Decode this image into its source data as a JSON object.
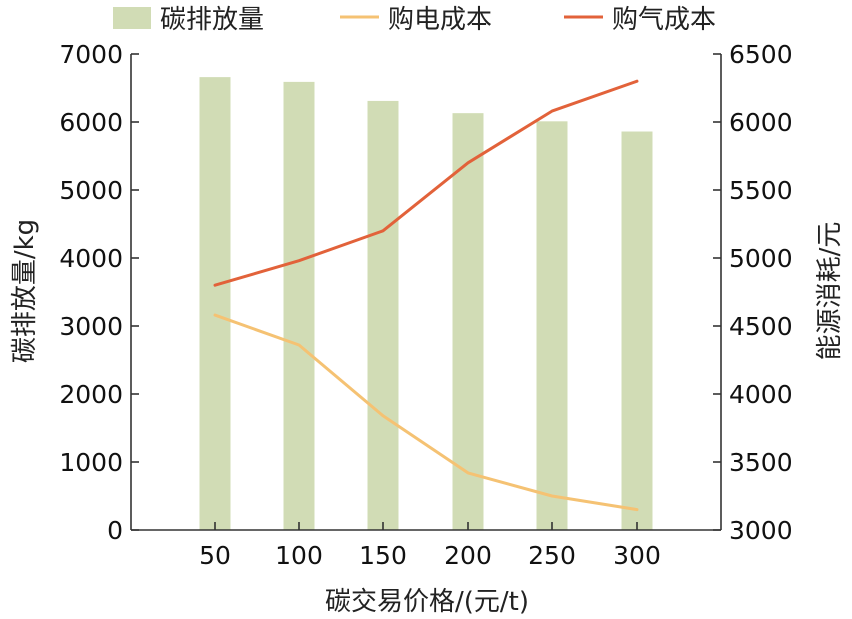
{
  "chart_data": {
    "type": "bar",
    "xlabel": "碳交易价格/(元/t)",
    "categories": [
      "50",
      "100",
      "150",
      "200",
      "250",
      "300"
    ],
    "left_axis": {
      "label": "碳排放量/kg",
      "range": [
        0,
        7000
      ],
      "ticks": [
        0,
        1000,
        2000,
        3000,
        4000,
        5000,
        6000,
        7000
      ]
    },
    "right_axis": {
      "label": "能源消耗/元",
      "range": [
        3000,
        6500
      ],
      "ticks": [
        3000,
        3500,
        4000,
        4500,
        5000,
        5500,
        6000,
        6500
      ]
    },
    "series": [
      {
        "name": "碳排放量",
        "type": "bar",
        "axis": "left",
        "color": "#d1dcb5",
        "values": [
          6660,
          6590,
          6310,
          6130,
          6010,
          5860
        ]
      },
      {
        "name": "购电成本",
        "type": "line",
        "axis": "right",
        "color": "#f5c273",
        "values": [
          4580,
          4360,
          3840,
          3420,
          3250,
          3150
        ]
      },
      {
        "name": "购气成本",
        "type": "line",
        "axis": "right",
        "color": "#e2623a",
        "values": [
          4800,
          4980,
          5200,
          5700,
          6080,
          6300
        ]
      }
    ],
    "legend_position": "top",
    "grid": false
  }
}
